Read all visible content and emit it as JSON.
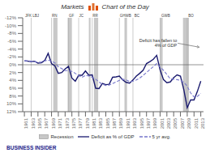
{
  "chart_data": {
    "type": "line",
    "title": "Markets",
    "subtitle": "Chart of the Day",
    "x": [
      1961,
      1962,
      1963,
      1964,
      1965,
      1966,
      1967,
      1968,
      1969,
      1970,
      1971,
      1972,
      1973,
      1974,
      1975,
      1976,
      1977,
      1978,
      1979,
      1980,
      1981,
      1982,
      1983,
      1984,
      1985,
      1986,
      1987,
      1988,
      1989,
      1990,
      1991,
      1992,
      1993,
      1994,
      1995,
      1996,
      1997,
      1998,
      1999,
      2000,
      2001,
      2002,
      2003,
      2004,
      2005,
      2006,
      2007,
      2008,
      2009,
      2010,
      2011,
      2012,
      2013
    ],
    "series": [
      {
        "name": "Deficit as % of GDP",
        "color": "#1a1a6e",
        "line_style": "solid",
        "values": [
          -1.0,
          -0.9,
          -0.8,
          -0.9,
          -0.4,
          -0.5,
          -1.1,
          -2.9,
          -0.3,
          0.3,
          2.2,
          2.0,
          1.1,
          0.4,
          3.4,
          4.2,
          2.7,
          2.7,
          1.6,
          2.7,
          2.6,
          6.0,
          6.1,
          4.8,
          5.1,
          5.0,
          3.2,
          3.1,
          2.9,
          3.9,
          4.5,
          4.7,
          3.9,
          2.9,
          2.2,
          1.4,
          -0.3,
          -0.8,
          -1.4,
          -2.4,
          1.3,
          3.8,
          4.6,
          4.4,
          3.3,
          2.6,
          2.9,
          6.4,
          11.0,
          9.0,
          9.0,
          6.8,
          4.2
        ]
      },
      {
        "name": "5 yr avg.",
        "color": "#7777cc",
        "line_style": "dashed",
        "values": [
          -1.0,
          -1.0,
          -0.9,
          -0.8,
          -0.6,
          -0.7,
          -1.0,
          -1.2,
          -0.9,
          -0.5,
          0.5,
          1.0,
          1.5,
          1.5,
          1.7,
          2.2,
          2.8,
          3.2,
          2.7,
          2.9,
          3.2,
          3.7,
          4.4,
          5.0,
          5.3,
          5.2,
          4.8,
          4.4,
          4.0,
          3.7,
          3.9,
          4.3,
          4.2,
          3.9,
          3.4,
          2.7,
          2.0,
          1.2,
          0.5,
          -0.3,
          0.6,
          1.4,
          2.5,
          3.6,
          3.7,
          3.8,
          4.0,
          4.5,
          5.5,
          7.2,
          8.2,
          8.1,
          7.3
        ]
      }
    ],
    "xlim": [
      1960.5,
      2013.8
    ],
    "xticks": [
      1961,
      1963,
      1965,
      1967,
      1969,
      1971,
      1973,
      1975,
      1977,
      1979,
      1981,
      1983,
      1985,
      1987,
      1989,
      1991,
      1993,
      1995,
      1997,
      1999,
      2001,
      2003,
      2005,
      2007,
      2009,
      2011,
      2013
    ],
    "ylim": [
      12,
      -12
    ],
    "yticks": [
      {
        "value": -12,
        "label": "-12%"
      },
      {
        "value": -10,
        "label": "-10%"
      },
      {
        "value": -8,
        "label": "-8%"
      },
      {
        "value": -6,
        "label": "-6%"
      },
      {
        "value": -4,
        "label": "-4%"
      },
      {
        "value": -2,
        "label": "-2%"
      },
      {
        "value": 0,
        "label": "0%"
      },
      {
        "value": 2,
        "label": "2%"
      },
      {
        "value": 4,
        "label": "4%"
      },
      {
        "value": 6,
        "label": "6%"
      },
      {
        "value": 8,
        "label": "8%"
      },
      {
        "value": 10,
        "label": "10%"
      },
      {
        "value": 12,
        "label": "12%"
      }
    ],
    "grid": false,
    "legend": "bottom",
    "recession": {
      "name": "Recession",
      "color": "#c8c8c8",
      "ranges": [
        [
          1969.5,
          1970.75
        ],
        [
          1973.75,
          1975.0
        ],
        [
          1980.0,
          1980.5
        ],
        [
          1981.5,
          1982.75
        ],
        [
          1990.5,
          1991.25
        ],
        [
          2001.0,
          2001.75
        ],
        [
          2007.75,
          2009.5
        ]
      ]
    },
    "hlines": [
      0
    ],
    "vlines": [
      1963,
      1969,
      1974,
      1977,
      1981,
      1989,
      1993,
      2001,
      2009
    ],
    "president_labels": [
      {
        "text": "JFK",
        "x": 1961.2
      },
      {
        "text": "LBJ",
        "x": 1963.4
      },
      {
        "text": "RN",
        "x": 1969.1
      },
      {
        "text": "GF",
        "x": 1974.1
      },
      {
        "text": "JC",
        "x": 1977.1
      },
      {
        "text": "RR",
        "x": 1981.1
      },
      {
        "text": "GHWB",
        "x": 1989.1
      },
      {
        "text": "BC",
        "x": 1993.4
      },
      {
        "text": "GWB",
        "x": 2001.4
      },
      {
        "text": "BO",
        "x": 2009.3
      }
    ],
    "annotations": [
      {
        "text": "Deficit has fallen to\n4% of GDP",
        "x": 2006.2,
        "y": -5.5,
        "arrow_x": 2012.5,
        "arrow_y": -4.5
      }
    ],
    "footer": "BUSINESS INSIDER"
  }
}
